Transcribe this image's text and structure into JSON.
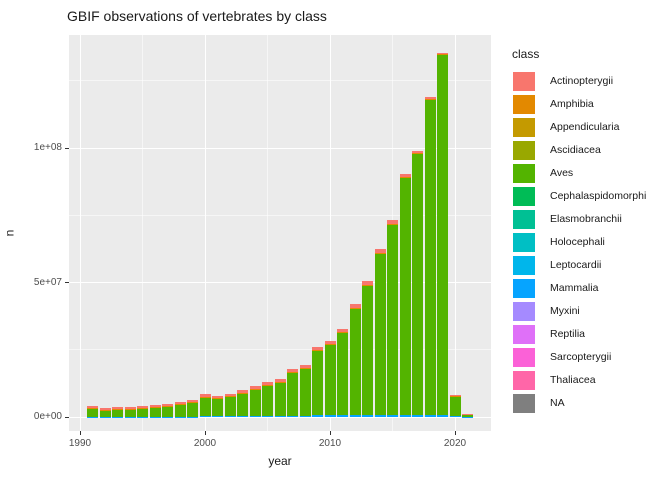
{
  "title": "GBIF observations of vertebrates by class",
  "axes": {
    "x": {
      "label": "year",
      "ticks": [
        {
          "value": 1990,
          "label": "1990"
        },
        {
          "value": 2000,
          "label": "2000"
        },
        {
          "value": 2010,
          "label": "2010"
        },
        {
          "value": 2020,
          "label": "2020"
        }
      ]
    },
    "y": {
      "label": "n",
      "ticks": [
        {
          "value": 0,
          "label": "0e+00"
        },
        {
          "value": 50,
          "label": "5e+07"
        },
        {
          "value": 100,
          "label": "1e+08"
        }
      ]
    }
  },
  "legend": {
    "title": "class",
    "items": [
      {
        "label": "Actinopterygii",
        "color": "#F8766D"
      },
      {
        "label": "Amphibia",
        "color": "#E38900"
      },
      {
        "label": "Appendicularia",
        "color": "#C49A00"
      },
      {
        "label": "Ascidiacea",
        "color": "#99A800"
      },
      {
        "label": "Aves",
        "color": "#53B400"
      },
      {
        "label": "Cephalaspidomorphi",
        "color": "#00BC56"
      },
      {
        "label": "Elasmobranchii",
        "color": "#00C094"
      },
      {
        "label": "Holocephali",
        "color": "#00BFC4"
      },
      {
        "label": "Leptocardii",
        "color": "#00B6EB"
      },
      {
        "label": "Mammalia",
        "color": "#06A4FF"
      },
      {
        "label": "Myxini",
        "color": "#A58AFF"
      },
      {
        "label": "Reptilia",
        "color": "#DF70F8"
      },
      {
        "label": "Sarcopterygii",
        "color": "#FB61D7"
      },
      {
        "label": "Thaliacea",
        "color": "#FF66A8"
      },
      {
        "label": "NA",
        "color": "#7F7F7F"
      }
    ]
  },
  "colors": {
    "panel_background": "#EBEBEB",
    "gridline": "#FFFFFF",
    "tick_text": "#4D4D4D",
    "axis_text": "#1A1A1A",
    "title_text": "#1A1A1A"
  },
  "chart_data": {
    "type": "bar",
    "stacked": true,
    "title": "GBIF observations of vertebrates by class",
    "xlabel": "year",
    "ylabel": "n",
    "values_unit": "millions of observations",
    "categories": [
      1991,
      1992,
      1993,
      1994,
      1995,
      1996,
      1997,
      1998,
      1999,
      2000,
      2001,
      2002,
      2003,
      2004,
      2005,
      2006,
      2007,
      2008,
      2009,
      2010,
      2011,
      2012,
      2013,
      2014,
      2015,
      2016,
      2017,
      2018,
      2019,
      2020,
      2021
    ],
    "totals": [
      4.1,
      3.3,
      3.7,
      3.7,
      4.1,
      4.4,
      4.8,
      5.6,
      6.3,
      8.5,
      7.8,
      8.5,
      10.0,
      11.5,
      13.0,
      14.0,
      18.0,
      19.3,
      25.9,
      28.3,
      32.8,
      41.9,
      50.5,
      62.5,
      73.3,
      90.4,
      99.0,
      119.0,
      135.5,
      8.1,
      1.1
    ],
    "series": [
      {
        "name": "Mammalia",
        "color": "#06A4FF",
        "values": [
          0.05,
          0.05,
          0.05,
          0.05,
          0.05,
          0.05,
          0.08,
          0.1,
          0.1,
          0.3,
          0.3,
          0.3,
          0.4,
          0.4,
          0.4,
          0.45,
          0.5,
          0.5,
          0.6,
          0.8,
          0.8,
          0.9,
          0.9,
          0.9,
          0.9,
          0.9,
          0.9,
          0.9,
          0.9,
          0.3,
          0.1
        ]
      },
      {
        "name": "Aves",
        "color": "#53B400",
        "values": [
          3.3,
          2.6,
          2.95,
          2.95,
          3.3,
          3.6,
          3.92,
          4.6,
          5.2,
          7.2,
          6.6,
          7.3,
          8.6,
          10.0,
          11.5,
          12.45,
          16.15,
          17.45,
          24.05,
          26.2,
          30.6,
          39.5,
          48.1,
          60.0,
          70.8,
          88.3,
          97.1,
          117.3,
          133.95,
          7.55,
          0.93
        ]
      },
      {
        "name": "Amphibia",
        "color": "#E38900",
        "values": [
          0.05,
          0.05,
          0.05,
          0.05,
          0.05,
          0.05,
          0.05,
          0.1,
          0.1,
          0.1,
          0.1,
          0.1,
          0.1,
          0.1,
          0.1,
          0.1,
          0.15,
          0.15,
          0.15,
          0.2,
          0.2,
          0.2,
          0.2,
          0.2,
          0.2,
          0.2,
          0.2,
          0.2,
          0.15,
          0.05,
          0.02
        ]
      },
      {
        "name": "Actinopterygii",
        "color": "#F8766D",
        "values": [
          0.7,
          0.6,
          0.65,
          0.65,
          0.7,
          0.7,
          0.75,
          0.8,
          0.9,
          0.9,
          0.8,
          0.8,
          0.9,
          1.0,
          1.0,
          1.0,
          1.2,
          1.2,
          1.1,
          1.1,
          1.2,
          1.3,
          1.3,
          1.4,
          1.4,
          1.0,
          0.8,
          0.6,
          0.5,
          0.2,
          0.05
        ]
      }
    ],
    "layout": {
      "ylim_millions": [
        0,
        142
      ],
      "y_major": [
        0,
        50,
        100
      ],
      "y_minor": [
        25,
        75,
        125
      ],
      "x_major": [
        1990,
        2000,
        2010,
        2020
      ],
      "x_minor": [
        1995,
        2005,
        2015
      ],
      "grid": true,
      "legend_position": "right",
      "stack_order_bottom_to_top": [
        "Mammalia",
        "Aves",
        "Amphibia",
        "Actinopterygii"
      ]
    }
  }
}
